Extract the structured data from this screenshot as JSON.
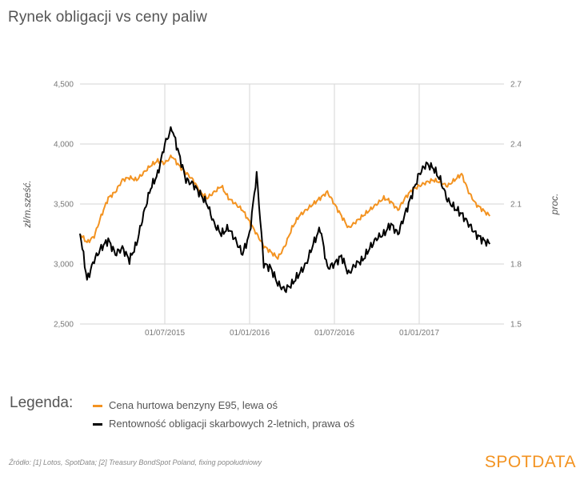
{
  "title": "Rynek obligacji vs ceny paliw",
  "legend": {
    "heading": "Legenda:",
    "items": [
      {
        "label": "Cena hurtowa benzyny E95, lewa oś",
        "color": "#f39321"
      },
      {
        "label": "Rentowność obligacji skarbowych 2-letnich, prawa oś",
        "color": "#000000"
      }
    ]
  },
  "source": "Źródło: [1] Lotos, SpotData; [2] Treasury BondSpot Poland, fixing popołudniowy",
  "brand": "SPOTDATA",
  "chart_data": {
    "type": "line",
    "title": "Rynek obligacji vs ceny paliw",
    "x_range": [
      "2015-01",
      "2017-07"
    ],
    "x_ticks": [
      "01/07/2015",
      "01/01/2016",
      "01/07/2016",
      "01/01/2017"
    ],
    "x_tick_positions": [
      6,
      12,
      18,
      24
    ],
    "x_extent": [
      0,
      30
    ],
    "left_axis": {
      "label": "zł/m.sześć.",
      "ticks": [
        "2,500",
        "3,000",
        "3,500",
        "4,000",
        "4,500"
      ],
      "ylim": [
        2500,
        4500
      ]
    },
    "right_axis": {
      "label": "proc.",
      "ticks": [
        "1.5",
        "1.8",
        "2.1",
        "2.4",
        "2.7"
      ],
      "ylim": [
        1.5,
        2.7
      ]
    },
    "series": [
      {
        "name": "Cena hurtowa benzyny E95, lewa oś",
        "axis": "left",
        "color": "#f39321",
        "points": [
          [
            0,
            3250
          ],
          [
            0.5,
            3180
          ],
          [
            1,
            3230
          ],
          [
            1.5,
            3400
          ],
          [
            2,
            3550
          ],
          [
            2.5,
            3600
          ],
          [
            3,
            3700
          ],
          [
            3.5,
            3720
          ],
          [
            4,
            3700
          ],
          [
            4.5,
            3760
          ],
          [
            5,
            3820
          ],
          [
            5.5,
            3860
          ],
          [
            6,
            3840
          ],
          [
            6.5,
            3900
          ],
          [
            7,
            3820
          ],
          [
            7.5,
            3760
          ],
          [
            8,
            3700
          ],
          [
            8.5,
            3600
          ],
          [
            9,
            3550
          ],
          [
            9.5,
            3600
          ],
          [
            10,
            3650
          ],
          [
            10.5,
            3550
          ],
          [
            11,
            3500
          ],
          [
            11.5,
            3450
          ],
          [
            12,
            3350
          ],
          [
            12.5,
            3250
          ],
          [
            13,
            3150
          ],
          [
            13.5,
            3100
          ],
          [
            14,
            3050
          ],
          [
            14.5,
            3150
          ],
          [
            15,
            3300
          ],
          [
            15.5,
            3400
          ],
          [
            16,
            3450
          ],
          [
            16.5,
            3500
          ],
          [
            17,
            3550
          ],
          [
            17.5,
            3600
          ],
          [
            18,
            3500
          ],
          [
            18.5,
            3400
          ],
          [
            19,
            3300
          ],
          [
            19.5,
            3350
          ],
          [
            20,
            3400
          ],
          [
            20.5,
            3450
          ],
          [
            21,
            3500
          ],
          [
            21.5,
            3550
          ],
          [
            22,
            3520
          ],
          [
            22.5,
            3450
          ],
          [
            23,
            3550
          ],
          [
            23.5,
            3620
          ],
          [
            24,
            3650
          ],
          [
            24.5,
            3680
          ],
          [
            25,
            3700
          ],
          [
            25.5,
            3680
          ],
          [
            26,
            3650
          ],
          [
            26.5,
            3700
          ],
          [
            27,
            3750
          ],
          [
            27.5,
            3600
          ],
          [
            28,
            3500
          ],
          [
            28.5,
            3450
          ],
          [
            29,
            3400
          ]
        ]
      },
      {
        "name": "Rentowność obligacji skarbowych 2-letnich, prawa oś",
        "axis": "right",
        "color": "#000000",
        "points": [
          [
            0,
            1.96
          ],
          [
            0.5,
            1.72
          ],
          [
            1,
            1.82
          ],
          [
            1.5,
            1.88
          ],
          [
            2,
            1.92
          ],
          [
            2.5,
            1.85
          ],
          [
            3,
            1.88
          ],
          [
            3.5,
            1.82
          ],
          [
            4,
            1.9
          ],
          [
            4.5,
            2.05
          ],
          [
            5,
            2.18
          ],
          [
            5.5,
            2.25
          ],
          [
            6,
            2.4
          ],
          [
            6.5,
            2.48
          ],
          [
            7,
            2.35
          ],
          [
            7.5,
            2.22
          ],
          [
            8,
            2.2
          ],
          [
            8.5,
            2.15
          ],
          [
            9,
            2.1
          ],
          [
            9.5,
            2.0
          ],
          [
            10,
            1.95
          ],
          [
            10.5,
            1.98
          ],
          [
            11,
            1.92
          ],
          [
            11.5,
            1.85
          ],
          [
            12,
            1.95
          ],
          [
            12.5,
            2.25
          ],
          [
            13,
            1.8
          ],
          [
            13.5,
            1.78
          ],
          [
            14,
            1.7
          ],
          [
            14.5,
            1.67
          ],
          [
            15,
            1.7
          ],
          [
            15.5,
            1.75
          ],
          [
            16,
            1.8
          ],
          [
            16.5,
            1.9
          ],
          [
            17,
            1.98
          ],
          [
            17.5,
            1.78
          ],
          [
            18,
            1.8
          ],
          [
            18.5,
            1.84
          ],
          [
            19,
            1.75
          ],
          [
            19.5,
            1.8
          ],
          [
            20,
            1.82
          ],
          [
            20.5,
            1.88
          ],
          [
            21,
            1.93
          ],
          [
            21.5,
            1.95
          ],
          [
            22,
            2.0
          ],
          [
            22.5,
            1.95
          ],
          [
            23,
            2.05
          ],
          [
            23.5,
            2.15
          ],
          [
            24,
            2.25
          ],
          [
            24.5,
            2.3
          ],
          [
            25,
            2.28
          ],
          [
            25.5,
            2.22
          ],
          [
            26,
            2.12
          ],
          [
            26.5,
            2.08
          ],
          [
            27,
            2.05
          ],
          [
            27.5,
            2.0
          ],
          [
            28,
            1.95
          ],
          [
            28.5,
            1.92
          ],
          [
            29,
            1.9
          ]
        ]
      }
    ]
  }
}
